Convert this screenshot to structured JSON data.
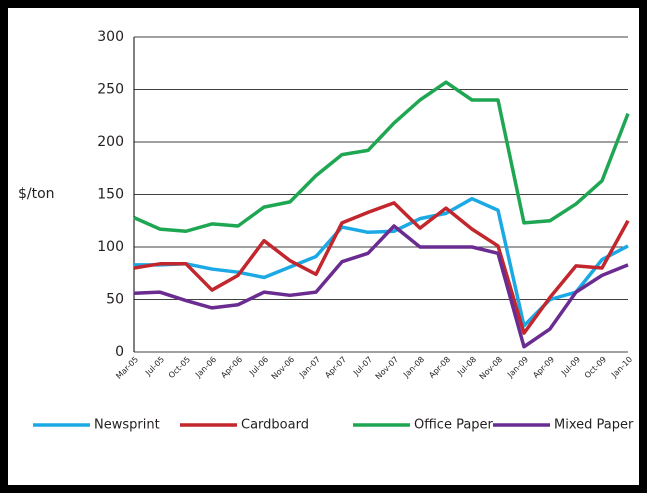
{
  "chart_data": {
    "type": "line",
    "y_label": "$/ton",
    "categories": [
      "Mar-05",
      "Jul-05",
      "Oct-05",
      "Jan-06",
      "Apr-06",
      "Jul-06",
      "Nov-06",
      "Jan-07",
      "Apr-07",
      "Jul-07",
      "Nov-07",
      "Jan-08",
      "Apr-08",
      "Jul-08",
      "Nov-08",
      "Jan-09",
      "Apr-09",
      "Jul-09",
      "Oct-09",
      "Jan-10"
    ],
    "series": [
      {
        "name": "Newsprint",
        "color": "#1ba9e6",
        "values": [
          83,
          83,
          84,
          79,
          76,
          71,
          81,
          91,
          119,
          114,
          115,
          127,
          132,
          146,
          135,
          25,
          50,
          57,
          88,
          101
        ]
      },
      {
        "name": "Cardboard",
        "color": "#c1272d",
        "values": [
          80,
          84,
          84,
          59,
          73,
          106,
          87,
          74,
          123,
          133,
          142,
          118,
          137,
          117,
          101,
          18,
          52,
          82,
          80,
          125
        ]
      },
      {
        "name": "Office Paper",
        "color": "#1fa652",
        "values": [
          128,
          117,
          115,
          122,
          120,
          138,
          143,
          168,
          188,
          192,
          218,
          240,
          257,
          240,
          240,
          123,
          125,
          141,
          163,
          227
        ]
      },
      {
        "name": "Mixed Paper",
        "color": "#6a2c91",
        "values": [
          56,
          57,
          49,
          42,
          45,
          57,
          54,
          57,
          86,
          94,
          120,
          100,
          100,
          100,
          94,
          5,
          22,
          57,
          73,
          83
        ]
      }
    ],
    "ylim": [
      0,
      300
    ],
    "yticks": [
      0,
      50,
      100,
      150,
      200,
      250,
      300
    ],
    "grid": true,
    "legend": "bottom"
  }
}
